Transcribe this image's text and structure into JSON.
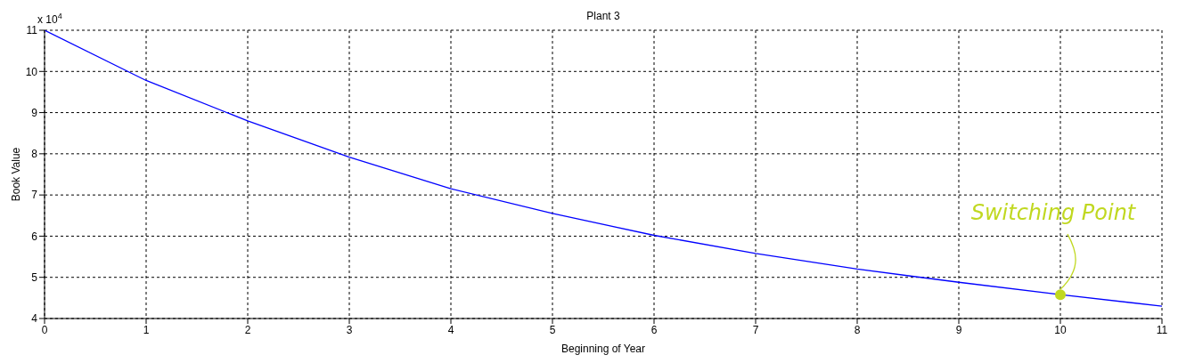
{
  "chart_data": {
    "type": "line",
    "title": "Plant 3",
    "xlabel": "Beginning of Year",
    "ylabel": "Book Value",
    "x": [
      0,
      1,
      2,
      3,
      4,
      5,
      6,
      7,
      8,
      9,
      10,
      11
    ],
    "series": [
      {
        "color": "#0000ff",
        "marker": "none",
        "values": [
          11,
          9.78,
          8.8,
          7.92,
          7.15,
          6.55,
          6.02,
          5.58,
          5.2,
          4.88,
          4.58,
          4.3
        ]
      },
      {
        "type": "scatter",
        "color": "#c0d820",
        "marker": "circle",
        "x": [
          10
        ],
        "values": [
          4.58
        ]
      }
    ],
    "annotations": [
      "x 10$^{4}$",
      {
        "text": "Switching Point",
        "x": 10,
        "y": 4.58
      }
    ],
    "xlim": [
      0,
      11
    ],
    "xticks": [
      0,
      1,
      2,
      3,
      4,
      5,
      6,
      7,
      8,
      9,
      10,
      11
    ],
    "ylim": [
      4,
      11
    ],
    "yticks": [
      4,
      5,
      6,
      7,
      8,
      9,
      10,
      11
    ],
    "grid": true,
    "line_style": "solid"
  }
}
